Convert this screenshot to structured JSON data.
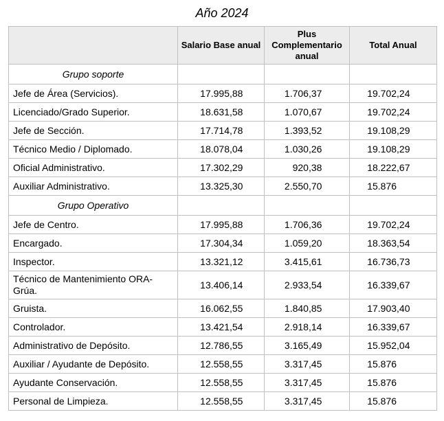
{
  "title": "Año 2024",
  "colors": {
    "background": "#ffffff",
    "header_bg": "#ececec",
    "border": "#c0c0c0",
    "text": "#000000"
  },
  "table": {
    "headers": [
      "",
      "Salario Base anual",
      "Plus Complementario anual",
      "Total Anual"
    ],
    "column_names": [
      "puesto",
      "salario_base_anual",
      "plus_complementario_anual",
      "total_anual"
    ],
    "rows": [
      {
        "type": "group",
        "label": "Grupo soporte",
        "values": [
          "",
          "",
          ""
        ]
      },
      {
        "type": "data",
        "label": "Jefe de Área (Servicios).",
        "values": [
          "17.995,88",
          "1.706,37",
          "19.702,24"
        ]
      },
      {
        "type": "data",
        "label": "Licenciado/Grado Superior.",
        "values": [
          "18.631,58",
          "1.070,67",
          "19.702,24"
        ]
      },
      {
        "type": "data",
        "label": "Jefe de Sección.",
        "values": [
          "17.714,78",
          "1.393,52",
          "19.108,29"
        ]
      },
      {
        "type": "data",
        "label": "Técnico Medio / Diplomado.",
        "values": [
          "18.078,04",
          "1.030,26",
          "19.108,29"
        ]
      },
      {
        "type": "data",
        "label": "Oficial Administrativo.",
        "values": [
          "17.302,29",
          "920,38",
          "18.222,67"
        ]
      },
      {
        "type": "data",
        "label": "Auxiliar Administrativo.",
        "values": [
          "13.325,30",
          "2.550,70",
          "15.876"
        ]
      },
      {
        "type": "group",
        "label": "Grupo Operativo",
        "values": [
          "",
          "",
          ""
        ]
      },
      {
        "type": "data",
        "label": "Jefe de Centro.",
        "values": [
          "17.995,88",
          "1.706,36",
          "19.702,24"
        ]
      },
      {
        "type": "data",
        "label": "Encargado.",
        "values": [
          "17.304,34",
          "1.059,20",
          "18.363,54"
        ]
      },
      {
        "type": "data",
        "label": "Inspector.",
        "values": [
          "13.321,12",
          "3.415,61",
          "16.736,73"
        ]
      },
      {
        "type": "data",
        "label": "Técnico de Mantenimiento ORA-Grúa.",
        "values": [
          "13.406,14",
          "2.933,54",
          "16.339,67"
        ]
      },
      {
        "type": "data",
        "label": "Gruista.",
        "values": [
          "16.062,55",
          "1.840,85",
          "17.903,40"
        ]
      },
      {
        "type": "data",
        "label": "Controlador.",
        "values": [
          "13.421,54",
          "2.918,14",
          "16.339,67"
        ]
      },
      {
        "type": "data",
        "label": "Administrativo de Depósito.",
        "values": [
          "12.786,55",
          "3.165,49",
          "15.952,04"
        ]
      },
      {
        "type": "data",
        "label": "Auxiliar / Ayudante de Depósito.",
        "values": [
          "12.558,55",
          "3.317,45",
          "15.876"
        ]
      },
      {
        "type": "data",
        "label": "Ayudante Conservación.",
        "values": [
          "12.558,55",
          "3.317,45",
          "15.876"
        ]
      },
      {
        "type": "data",
        "label": "Personal de Limpieza.",
        "values": [
          "12.558,55",
          "3.317,45",
          "15.876"
        ]
      }
    ]
  }
}
